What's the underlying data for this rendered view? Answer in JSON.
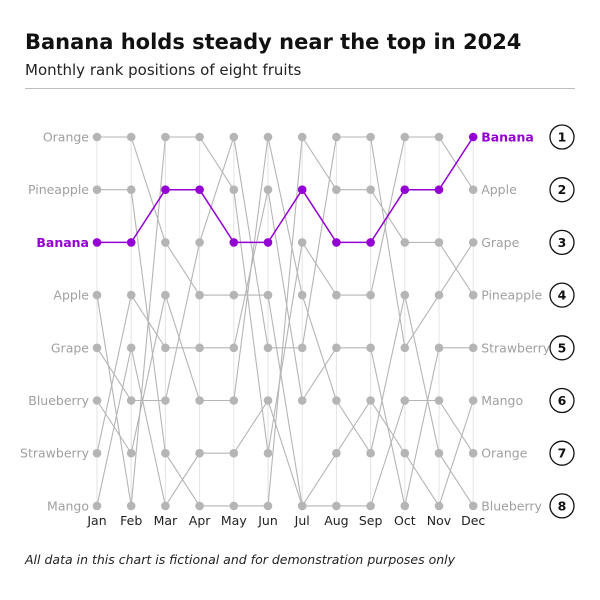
{
  "header": {
    "title": "Banana holds steady near the top in 2024",
    "subtitle": "Monthly rank positions of eight fruits"
  },
  "footer": {
    "note": "All data in this chart is fictional and for demonstration purposes only"
  },
  "colors": {
    "highlight": "#9400D3",
    "other": "#b5b5b5",
    "label_other": "#a0a0a0",
    "grid": "#e3e3e3"
  },
  "chart_data": {
    "type": "line",
    "chart_kind": "bump",
    "x": [
      "Jan",
      "Feb",
      "Mar",
      "Apr",
      "May",
      "Jun",
      "Jul",
      "Aug",
      "Sep",
      "Oct",
      "Nov",
      "Dec"
    ],
    "ranks": [
      1,
      2,
      3,
      4,
      5,
      6,
      7,
      8
    ],
    "ylim": [
      1,
      8
    ],
    "y_inverted": true,
    "highlight_series": "Banana",
    "series": [
      {
        "name": "Banana",
        "values": [
          3,
          3,
          2,
          2,
          3,
          3,
          2,
          3,
          3,
          2,
          2,
          1
        ]
      },
      {
        "name": "Orange",
        "values": [
          1,
          1,
          3,
          4,
          4,
          4,
          8,
          8,
          8,
          6,
          6,
          7
        ]
      },
      {
        "name": "Pineapple",
        "values": [
          2,
          2,
          7,
          8,
          8,
          8,
          1,
          2,
          2,
          3,
          3,
          4
        ]
      },
      {
        "name": "Apple",
        "values": [
          4,
          8,
          1,
          1,
          2,
          7,
          3,
          4,
          4,
          1,
          1,
          2
        ]
      },
      {
        "name": "Grape",
        "values": [
          5,
          6,
          6,
          3,
          1,
          5,
          5,
          1,
          1,
          5,
          4,
          3
        ]
      },
      {
        "name": "Blueberry",
        "values": [
          6,
          7,
          4,
          6,
          6,
          1,
          4,
          6,
          7,
          4,
          7,
          8
        ]
      },
      {
        "name": "Strawberry",
        "values": [
          7,
          4,
          5,
          5,
          5,
          2,
          6,
          5,
          5,
          8,
          5,
          5
        ]
      },
      {
        "name": "Mango",
        "values": [
          8,
          5,
          8,
          7,
          7,
          6,
          8,
          7,
          6,
          7,
          8,
          6
        ]
      }
    ]
  }
}
